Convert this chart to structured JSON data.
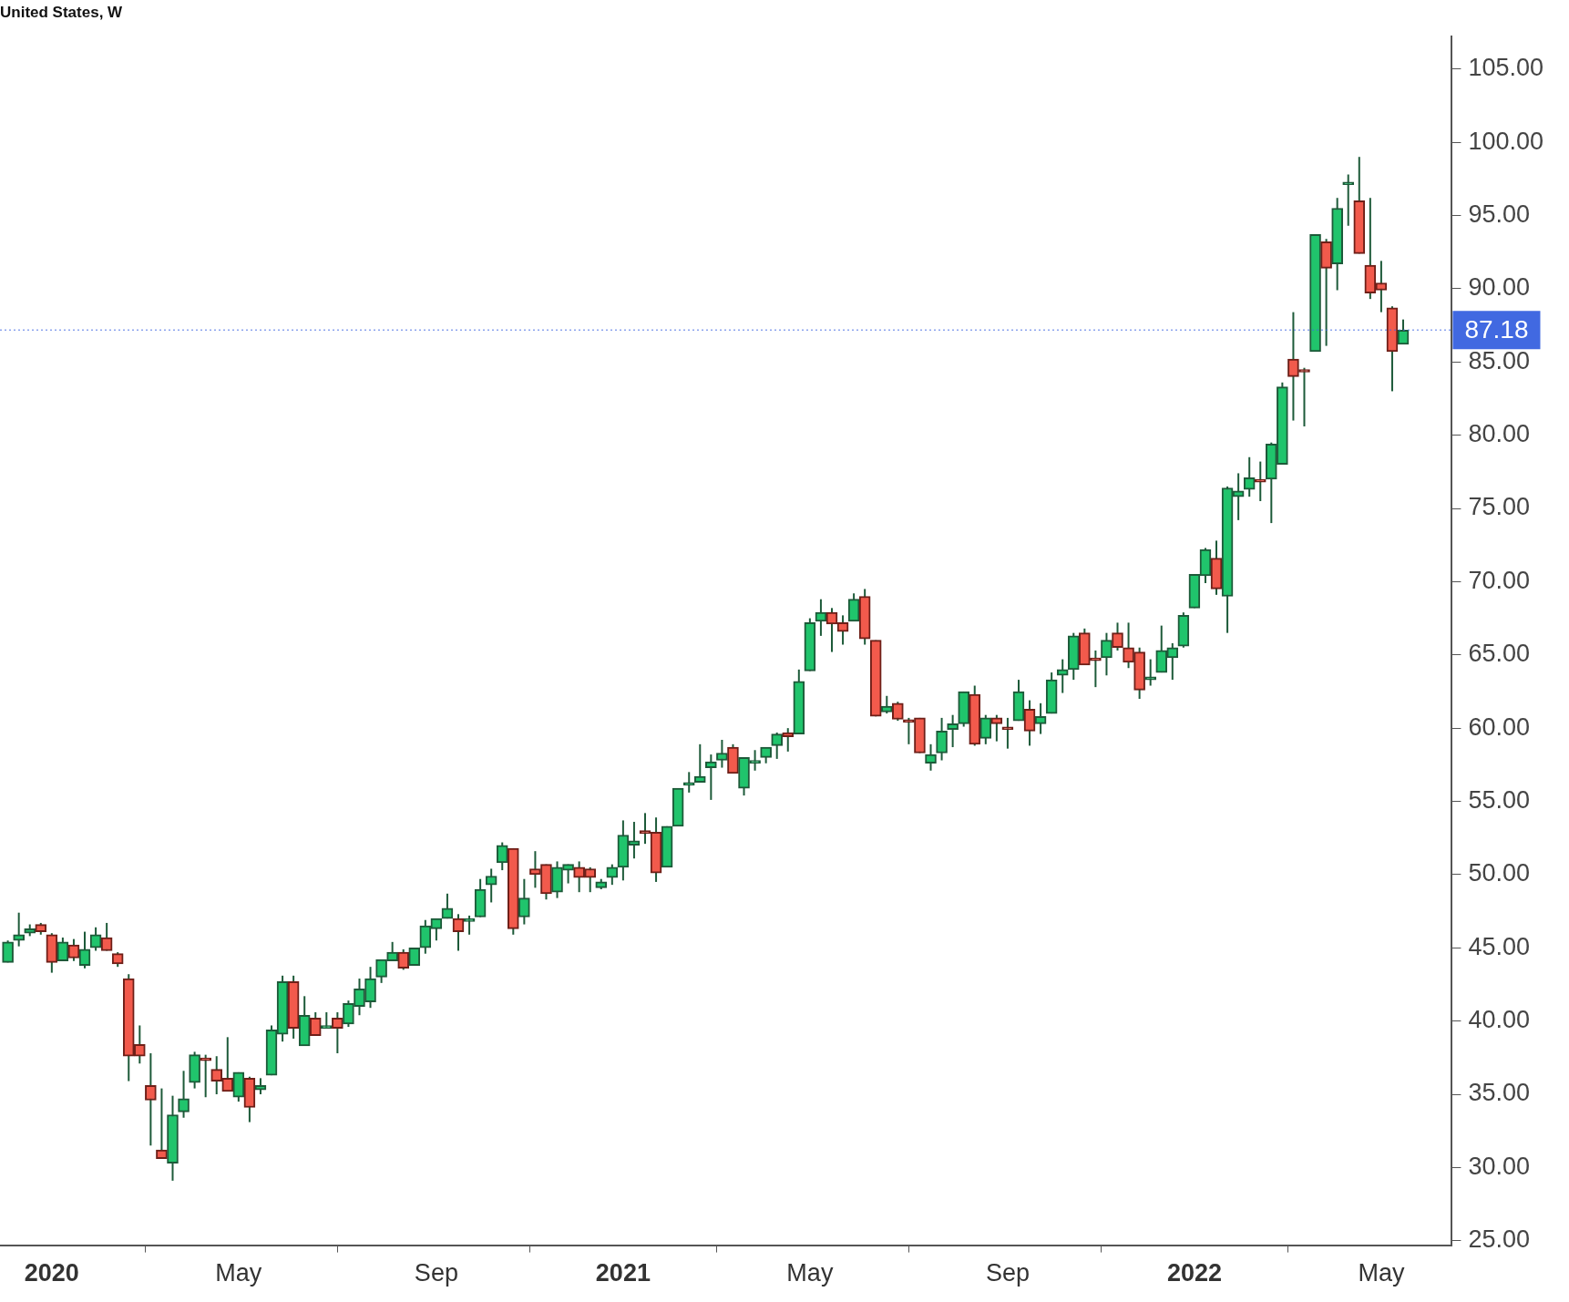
{
  "chart_data": {
    "type": "candlestick",
    "title": "United States, W",
    "x": [
      "2019-12-09",
      "2019-12-16",
      "2019-12-23",
      "2019-12-30",
      "2020-01-06",
      "2020-01-13",
      "2020-01-20",
      "2020-01-27",
      "2020-02-03",
      "2020-02-10",
      "2020-02-17",
      "2020-02-24",
      "2020-03-02",
      "2020-03-09",
      "2020-03-16",
      "2020-03-23",
      "2020-03-30",
      "2020-04-06",
      "2020-04-13",
      "2020-04-20",
      "2020-04-27",
      "2020-05-04",
      "2020-05-11",
      "2020-05-18",
      "2020-05-25",
      "2020-06-01",
      "2020-06-08",
      "2020-06-15",
      "2020-06-22",
      "2020-06-29",
      "2020-07-06",
      "2020-07-13",
      "2020-07-20",
      "2020-07-27",
      "2020-08-03",
      "2020-08-10",
      "2020-08-17",
      "2020-08-24",
      "2020-08-31",
      "2020-09-07",
      "2020-09-14",
      "2020-09-21",
      "2020-09-28",
      "2020-10-05",
      "2020-10-12",
      "2020-10-19",
      "2020-10-26",
      "2020-11-02",
      "2020-11-09",
      "2020-11-16",
      "2020-11-23",
      "2020-11-30",
      "2020-12-07",
      "2020-12-14",
      "2020-12-21",
      "2020-12-28",
      "2021-01-04",
      "2021-01-11",
      "2021-01-18",
      "2021-01-25",
      "2021-02-01",
      "2021-02-08",
      "2021-02-15",
      "2021-02-22",
      "2021-03-01",
      "2021-03-08",
      "2021-03-15",
      "2021-03-22",
      "2021-03-29",
      "2021-04-05",
      "2021-04-12",
      "2021-04-19",
      "2021-04-26",
      "2021-05-03",
      "2021-05-10",
      "2021-05-17",
      "2021-05-24",
      "2021-05-31",
      "2021-06-07",
      "2021-06-14",
      "2021-06-21",
      "2021-06-28",
      "2021-07-05",
      "2021-07-12",
      "2021-07-19",
      "2021-07-26",
      "2021-08-02",
      "2021-08-09",
      "2021-08-16",
      "2021-08-23",
      "2021-08-30",
      "2021-09-06",
      "2021-09-13",
      "2021-09-20",
      "2021-09-27",
      "2021-10-04",
      "2021-10-11",
      "2021-10-18",
      "2021-10-25",
      "2021-11-01",
      "2021-11-08",
      "2021-11-15",
      "2021-11-22",
      "2021-11-29",
      "2021-12-06",
      "2021-12-13",
      "2021-12-20",
      "2021-12-27",
      "2022-01-03",
      "2022-01-10",
      "2022-01-17",
      "2022-01-24",
      "2022-01-31",
      "2022-02-07",
      "2022-02-14",
      "2022-02-21",
      "2022-02-28",
      "2022-03-07",
      "2022-03-14",
      "2022-03-21",
      "2022-03-28",
      "2022-04-04",
      "2022-04-11",
      "2022-04-18",
      "2022-04-25",
      "2022-05-02",
      "2022-05-09",
      "2022-05-16"
    ],
    "ohlc": [
      [
        44.0,
        45.5,
        44.0,
        45.4
      ],
      [
        45.5,
        47.4,
        45.1,
        45.9
      ],
      [
        46.0,
        46.6,
        45.8,
        46.3
      ],
      [
        46.6,
        46.7,
        45.9,
        46.1
      ],
      [
        45.9,
        46.0,
        43.3,
        44.0
      ],
      [
        44.1,
        45.7,
        44.1,
        45.4
      ],
      [
        45.2,
        45.6,
        44.1,
        44.3
      ],
      [
        43.8,
        46.1,
        43.6,
        44.9
      ],
      [
        45.0,
        46.4,
        44.8,
        45.9
      ],
      [
        45.7,
        46.7,
        44.8,
        44.8
      ],
      [
        44.6,
        44.7,
        43.7,
        43.9
      ],
      [
        42.9,
        43.2,
        35.9,
        37.6
      ],
      [
        38.4,
        39.7,
        37.1,
        37.6
      ],
      [
        35.6,
        37.8,
        31.5,
        34.6
      ],
      [
        31.2,
        35.4,
        30.6,
        30.6
      ],
      [
        30.3,
        34.9,
        29.1,
        33.6
      ],
      [
        33.8,
        36.6,
        33.4,
        34.7
      ],
      [
        35.8,
        37.9,
        35.4,
        37.7
      ],
      [
        37.4,
        37.7,
        34.8,
        37.3
      ],
      [
        36.7,
        37.6,
        35.0,
        35.9
      ],
      [
        36.1,
        38.9,
        35.2,
        35.2
      ],
      [
        34.8,
        36.5,
        34.5,
        36.5
      ],
      [
        36.1,
        36.2,
        33.1,
        34.1
      ],
      [
        35.3,
        36.1,
        35.0,
        35.6
      ],
      [
        36.3,
        39.7,
        36.3,
        39.4
      ],
      [
        39.1,
        43.1,
        38.6,
        42.7
      ],
      [
        42.7,
        43.1,
        38.8,
        39.5
      ],
      [
        38.3,
        41.7,
        38.3,
        40.4
      ],
      [
        40.2,
        40.6,
        39.0,
        39.0
      ],
      [
        39.5,
        40.6,
        39.5,
        39.7
      ],
      [
        40.2,
        40.6,
        37.8,
        39.5
      ],
      [
        39.8,
        41.4,
        39.6,
        41.2
      ],
      [
        41.0,
        42.9,
        40.4,
        42.2
      ],
      [
        41.3,
        43.7,
        40.9,
        42.9
      ],
      [
        43.0,
        44.2,
        42.6,
        44.2
      ],
      [
        44.1,
        45.4,
        44.1,
        44.7
      ],
      [
        44.7,
        44.9,
        43.5,
        43.6
      ],
      [
        43.8,
        45.0,
        43.8,
        45.0
      ],
      [
        45.0,
        46.9,
        44.6,
        46.5
      ],
      [
        46.3,
        47.0,
        45.5,
        47.0
      ],
      [
        47.0,
        48.7,
        47.0,
        47.7
      ],
      [
        47.0,
        47.3,
        44.8,
        46.1
      ],
      [
        46.8,
        47.2,
        45.9,
        46.9
      ],
      [
        47.1,
        49.7,
        47.1,
        49.0
      ],
      [
        49.3,
        50.4,
        48.1,
        49.9
      ],
      [
        50.8,
        52.2,
        50.3,
        52.0
      ],
      [
        51.8,
        51.8,
        45.9,
        46.3
      ],
      [
        47.1,
        49.7,
        46.6,
        48.4
      ],
      [
        50.4,
        51.6,
        49.1,
        50.0
      ],
      [
        50.7,
        50.7,
        48.3,
        48.7
      ],
      [
        48.8,
        50.9,
        48.4,
        50.5
      ],
      [
        50.3,
        50.7,
        49.4,
        50.7
      ],
      [
        50.5,
        50.9,
        48.8,
        49.8
      ],
      [
        50.4,
        50.5,
        48.8,
        49.8
      ],
      [
        49.1,
        49.7,
        49.0,
        49.5
      ],
      [
        49.8,
        50.7,
        49.3,
        50.5
      ],
      [
        50.5,
        53.7,
        49.6,
        52.7
      ],
      [
        52.0,
        53.6,
        51.1,
        52.3
      ],
      [
        53.0,
        54.2,
        52.1,
        52.8
      ],
      [
        52.9,
        53.9,
        49.5,
        50.1
      ],
      [
        50.5,
        53.3,
        50.5,
        53.3
      ],
      [
        53.3,
        55.9,
        53.3,
        55.9
      ],
      [
        56.1,
        57.0,
        55.6,
        56.2
      ],
      [
        56.3,
        58.9,
        56.3,
        56.7
      ],
      [
        57.3,
        58.2,
        55.1,
        57.7
      ],
      [
        57.8,
        59.2,
        57.3,
        58.3
      ],
      [
        58.7,
        58.9,
        56.9,
        56.9
      ],
      [
        55.9,
        58.0,
        55.4,
        58.0
      ],
      [
        57.6,
        58.5,
        57.1,
        57.8
      ],
      [
        58.0,
        58.7,
        57.6,
        58.7
      ],
      [
        58.8,
        59.7,
        57.9,
        59.6
      ],
      [
        59.7,
        60.0,
        58.4,
        59.4
      ],
      [
        59.6,
        64.0,
        59.6,
        63.2
      ],
      [
        63.9,
        67.5,
        63.9,
        67.2
      ],
      [
        67.3,
        68.8,
        66.3,
        67.9
      ],
      [
        67.9,
        68.2,
        65.2,
        67.1
      ],
      [
        67.2,
        67.7,
        65.7,
        66.6
      ],
      [
        67.3,
        69.2,
        67.3,
        68.8
      ],
      [
        69.0,
        69.5,
        65.7,
        66.1
      ],
      [
        66.0,
        66.0,
        60.8,
        60.8
      ],
      [
        61.1,
        62.2,
        61.0,
        61.5
      ],
      [
        61.7,
        61.8,
        60.5,
        60.6
      ],
      [
        60.5,
        60.7,
        58.9,
        60.4
      ],
      [
        60.7,
        60.7,
        58.3,
        58.3
      ],
      [
        57.6,
        58.9,
        57.1,
        58.2
      ],
      [
        58.3,
        60.7,
        57.8,
        59.8
      ],
      [
        59.9,
        60.9,
        58.7,
        60.3
      ],
      [
        60.3,
        62.5,
        60.1,
        62.5
      ],
      [
        62.3,
        62.9,
        58.8,
        58.9
      ],
      [
        59.3,
        60.9,
        58.9,
        60.7
      ],
      [
        60.7,
        60.9,
        59.1,
        60.3
      ],
      [
        60.0,
        60.7,
        58.6,
        59.9
      ],
      [
        60.5,
        63.3,
        60.5,
        62.5
      ],
      [
        61.3,
        61.9,
        58.8,
        59.8
      ],
      [
        60.3,
        61.7,
        59.6,
        60.8
      ],
      [
        61.0,
        63.8,
        61.0,
        63.3
      ],
      [
        63.6,
        64.7,
        62.4,
        64.0
      ],
      [
        64.0,
        66.5,
        63.3,
        66.3
      ],
      [
        66.5,
        66.8,
        64.3,
        64.3
      ],
      [
        64.7,
        65.3,
        62.8,
        64.6
      ],
      [
        64.8,
        66.5,
        63.6,
        66.0
      ],
      [
        66.5,
        67.2,
        65.3,
        65.5
      ],
      [
        65.5,
        67.2,
        64.1,
        64.5
      ],
      [
        65.2,
        65.5,
        62.0,
        62.6
      ],
      [
        63.3,
        64.7,
        62.9,
        63.5
      ],
      [
        63.8,
        67.0,
        63.8,
        65.3
      ],
      [
        64.8,
        65.8,
        63.3,
        65.5
      ],
      [
        65.6,
        67.9,
        65.5,
        67.7
      ],
      [
        68.2,
        70.5,
        68.2,
        70.5
      ],
      [
        70.4,
        72.3,
        69.9,
        72.2
      ],
      [
        71.6,
        72.8,
        69.1,
        69.5
      ],
      [
        69.0,
        76.5,
        66.5,
        76.4
      ],
      [
        75.8,
        77.4,
        74.2,
        76.2
      ],
      [
        76.3,
        78.5,
        75.8,
        77.1
      ],
      [
        76.9,
        78.2,
        75.5,
        76.8
      ],
      [
        77.0,
        79.5,
        74.0,
        79.4
      ],
      [
        78.0,
        83.6,
        78.0,
        83.3
      ],
      [
        85.2,
        88.4,
        81.0,
        84.0
      ],
      [
        84.4,
        84.6,
        80.6,
        84.3
      ],
      [
        85.7,
        93.7,
        85.7,
        93.7
      ],
      [
        93.2,
        93.4,
        86.1,
        91.4
      ],
      [
        91.7,
        96.2,
        89.9,
        95.5
      ],
      [
        97.1,
        97.8,
        94.3,
        97.2
      ],
      [
        96.0,
        99.0,
        92.4,
        92.4
      ],
      [
        91.6,
        96.2,
        89.3,
        89.7
      ],
      [
        90.4,
        91.9,
        88.4,
        89.9
      ],
      [
        88.7,
        88.8,
        83.0,
        85.7
      ],
      [
        86.2,
        87.9,
        86.2,
        87.18
      ]
    ],
    "xlim": [
      "2019-12-04",
      "2022-06-16"
    ],
    "xticks": [
      {
        "value": "2020-01-06",
        "label": "2020"
      },
      {
        "value": "2020-05-04",
        "label": "May"
      },
      {
        "value": "2020-09-07",
        "label": "Sep"
      },
      {
        "value": "2021-01-04",
        "label": "2021"
      },
      {
        "value": "2021-05-03",
        "label": "May"
      },
      {
        "value": "2021-09-06",
        "label": "Sep"
      },
      {
        "value": "2022-01-03",
        "label": "2022"
      },
      {
        "value": "2022-05-02",
        "label": "May"
      }
    ],
    "ylim": [
      24.7,
      107.2
    ],
    "yticks": [
      {
        "value": 25,
        "label": "25.00"
      },
      {
        "value": 30,
        "label": "30.00"
      },
      {
        "value": 35,
        "label": "35.00"
      },
      {
        "value": 40,
        "label": "40.00"
      },
      {
        "value": 45,
        "label": "45.00"
      },
      {
        "value": 50,
        "label": "50.00"
      },
      {
        "value": 55,
        "label": "55.00"
      },
      {
        "value": 60,
        "label": "60.00"
      },
      {
        "value": 65,
        "label": "65.00"
      },
      {
        "value": 70,
        "label": "70.00"
      },
      {
        "value": 75,
        "label": "75.00"
      },
      {
        "value": 80,
        "label": "80.00"
      },
      {
        "value": 85,
        "label": "85.00"
      },
      {
        "value": 90,
        "label": "90.00"
      },
      {
        "value": 95,
        "label": "95.00"
      },
      {
        "value": 100,
        "label": "100.00"
      },
      {
        "value": 105,
        "label": "105.00"
      }
    ],
    "ref_lines": [
      {
        "axis": "y",
        "value": 87.18,
        "label": "87.18",
        "color": "#4169e1",
        "line_style": "dotted"
      }
    ],
    "grid": false,
    "legend": false
  }
}
